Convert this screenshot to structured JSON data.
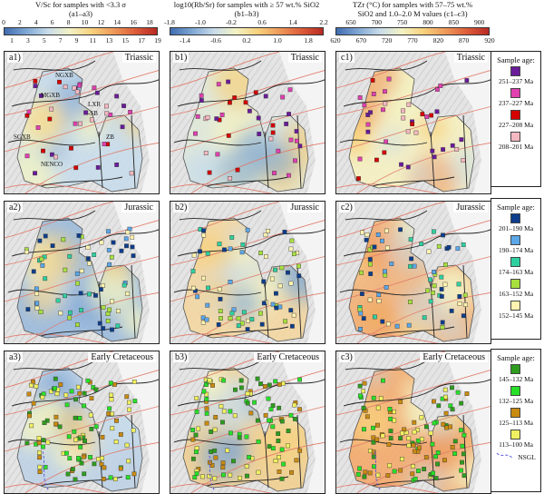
{
  "colorbars": [
    {
      "id": "a",
      "title1": "V/Sc for samples with <3.3 σ",
      "title2": "(a1–a3)",
      "ticks_top": [
        "0",
        "2",
        "4",
        "6",
        "8",
        "10",
        "12",
        "14",
        "16",
        "18"
      ],
      "ticks_bottom": [
        "1",
        "3",
        "5",
        "7",
        "9",
        "11",
        "13",
        "15",
        "17",
        "19"
      ],
      "range": [
        0,
        19
      ],
      "gradient": [
        "#3f6cb0",
        "#7fa7d4",
        "#c8dcea",
        "#f3f2c4",
        "#f7d17d",
        "#ef9a5a",
        "#dd5d3a",
        "#b82a23"
      ]
    },
    {
      "id": "b",
      "title1": "log10(Rb/Sr) for samples with ≥ 57 wt.% SiO2",
      "title2": "(b1–b3)",
      "ticks_top": [
        "-1.8",
        "-1.0",
        "-0.2",
        "0.6",
        "1.4",
        "2.2"
      ],
      "ticks_bottom": [
        "-1.4",
        "-0.6",
        "0.2",
        "1.0",
        "1.8"
      ],
      "range": [
        -1.8,
        2.2
      ],
      "gradient": [
        "#3f6cb0",
        "#7fa7d4",
        "#c8dcea",
        "#f3f2c4",
        "#f7d17d",
        "#ef9a5a",
        "#dd5d3a",
        "#b82a23"
      ]
    },
    {
      "id": "c",
      "title1": "TZr (°C) for samples with 57–75 wt.%",
      "title2": "SiO2 and 1.0–2.0 M values (c1–c3)",
      "ticks_top": [
        "650",
        "700",
        "750",
        "800",
        "850",
        "900"
      ],
      "ticks_bottom": [
        "620",
        "670",
        "720",
        "770",
        "820",
        "870",
        "920"
      ],
      "range": [
        620,
        920
      ],
      "gradient": [
        "#3f6cb0",
        "#7fa7d4",
        "#c8dcea",
        "#f3f2c4",
        "#f7d17d",
        "#ef9a5a",
        "#dd5d3a",
        "#b82a23"
      ]
    }
  ],
  "panels": [
    {
      "id": "a1",
      "label": "a1)",
      "title": "Triassic",
      "row": 0,
      "col": 0
    },
    {
      "id": "b1",
      "label": "b1)",
      "title": "Triassic",
      "row": 0,
      "col": 1
    },
    {
      "id": "c1",
      "label": "c1)",
      "title": "Triassic",
      "row": 0,
      "col": 2
    },
    {
      "id": "a2",
      "label": "a2)",
      "title": "Jurassic",
      "row": 1,
      "col": 0
    },
    {
      "id": "b2",
      "label": "b2)",
      "title": "Jurassic",
      "row": 1,
      "col": 1
    },
    {
      "id": "c2",
      "label": "c2)",
      "title": "Jurassic",
      "row": 1,
      "col": 2
    },
    {
      "id": "a3",
      "label": "a3)",
      "title": "Early Cretaceous",
      "row": 2,
      "col": 0
    },
    {
      "id": "b3",
      "label": "b3)",
      "title": "Early Cretaceous",
      "row": 2,
      "col": 1
    },
    {
      "id": "c3",
      "label": "c3)",
      "title": "Early Cretaceous",
      "row": 2,
      "col": 2
    }
  ],
  "map_labels": [
    "NGXB",
    "MGXB",
    "LXR",
    "-SB",
    "SGXB",
    "ZB",
    "NENCO"
  ],
  "legends": [
    {
      "title": "Sample age:",
      "items": [
        {
          "label": "251–237 Ma",
          "color": "#6a1b9a"
        },
        {
          "label": "237–227 Ma",
          "color": "#e040b0"
        },
        {
          "label": "227–208 Ma",
          "color": "#d50000"
        },
        {
          "label": "208–201 Ma",
          "color": "#f4b8c0"
        }
      ]
    },
    {
      "title": "Sample age:",
      "items": [
        {
          "label": "201–190 Ma",
          "color": "#0d3d8c"
        },
        {
          "label": "190–174 Ma",
          "color": "#5ba7e8"
        },
        {
          "label": "174–163 Ma",
          "color": "#2fd0a0"
        },
        {
          "label": "163–152 Ma",
          "color": "#a8e040"
        },
        {
          "label": "152–145 Ma",
          "color": "#fff3b0"
        }
      ]
    },
    {
      "title": "Sample age:",
      "items": [
        {
          "label": "145–132 Ma",
          "color": "#2e9c1e"
        },
        {
          "label": "132–125 Ma",
          "color": "#28e028"
        },
        {
          "label": "125–113 Ma",
          "color": "#c88a10"
        },
        {
          "label": "113–100 Ma",
          "color": "#f0f060"
        }
      ],
      "extra": "NSGL"
    }
  ]
}
